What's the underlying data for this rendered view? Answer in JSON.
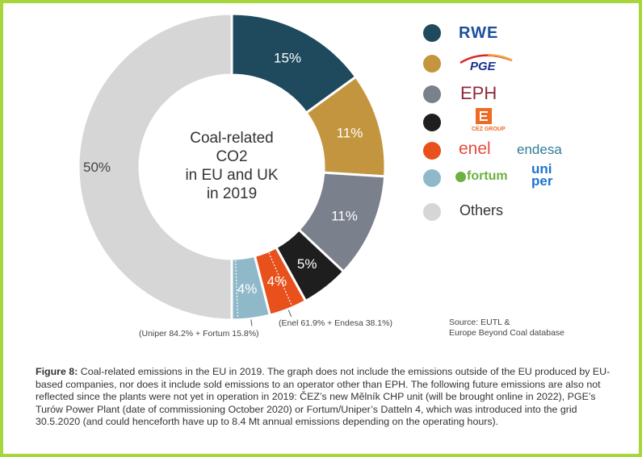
{
  "chart_data": {
    "type": "pie",
    "variant": "donut",
    "center_label": [
      "Coal-related",
      "CO2",
      "in EU and UK",
      "in 2019"
    ],
    "slices": [
      {
        "name": "RWE",
        "value": 15,
        "label": "15%",
        "color": "#1f4a5e"
      },
      {
        "name": "PGE",
        "value": 11,
        "label": "11%",
        "color": "#c4953f"
      },
      {
        "name": "EPH",
        "value": 11,
        "label": "11%",
        "color": "#7a808c"
      },
      {
        "name": "CEZ GROUP",
        "value": 5,
        "label": "5%",
        "color": "#1e1e1e"
      },
      {
        "name": "enel endesa",
        "value": 4,
        "label": "4%",
        "color": "#e8501c"
      },
      {
        "name": "fortum uniper",
        "value": 4,
        "label": "4%",
        "color": "#8fb9c9"
      },
      {
        "name": "Others",
        "value": 50,
        "label": "50%",
        "color": "#d6d6d6"
      }
    ],
    "annotations": {
      "enel": "(Enel 61.9% + Endesa 38.1%)",
      "uniper": "(Uniper 84.2% + Fortum 15.8%)"
    }
  },
  "legend": {
    "rwe": "RWE",
    "pge": "PGE",
    "eph": "EPH",
    "cez": "CEZ GROUP",
    "enel": "enel",
    "endesa": "endesa",
    "fortum": "fortum",
    "uniper_1": "uni",
    "uniper_2": "per",
    "others": "Others"
  },
  "source": [
    "Source: EUTL &",
    "Europe Beyond Coal database"
  ],
  "caption": {
    "label": "Figure 8:",
    "text": " Coal-related emissions in the EU in 2019. The graph does not include the emissions outside of the EU produced by EU-based companies, nor does it include sold emissions to an operator other than EPH. The following future emissions are also not reflected since the plants were not yet in operation in 2019: ČEZ’s new Mělník CHP unit (will be brought online in 2022), PGE’s Turów Power Plant (date of commissioning October 2020) or Fortum/Uniper’s Datteln 4, which was introduced into the grid 30.5.2020 (and could henceforth have up to 8.4 Mt annual emissions depending on the operating hours)."
  }
}
